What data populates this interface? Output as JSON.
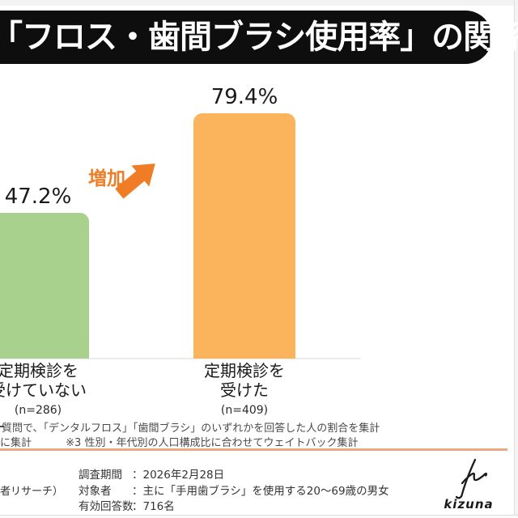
{
  "title": {
    "text": "「フロス・歯間ブラシ使用率」の関係"
  },
  "chart_data": {
    "type": "bar",
    "categories": [
      "定期検診を受けていない",
      "定期検診を受けた"
    ],
    "values": [
      47.2,
      79.4
    ],
    "value_labels": [
      "47.2%",
      "79.4%"
    ],
    "category_lines": [
      [
        "定期検診を",
        "受けていない"
      ],
      [
        "定期検診を",
        "受けた"
      ]
    ],
    "sample_sizes": [
      "(n=286)",
      "(n=409)"
    ],
    "bar_colors": [
      "#a9d18e",
      "#fbb45c"
    ],
    "annotation": "増加",
    "ylim": [
      0,
      100
    ],
    "grid": false,
    "legend": "none",
    "layout_note": "left bar partially cropped at left image edge"
  },
  "annotation": {
    "label": "増加",
    "color": "#f07d26"
  },
  "footnotes": {
    "line1": "質問で、「デンタルフロス」「歯間ブラシ」のいずれかを回答した人の割合を集計",
    "line2_left": "に集計",
    "line2_right": "※3 性別・年代別の人口構成比に合わせてウェイトバック集計"
  },
  "survey": {
    "cropped_left_text": "者リサーチ）",
    "rows": [
      {
        "label": "調査期間",
        "value": "：2026年2月28日"
      },
      {
        "label": "対象者",
        "value": "：主に「手用歯ブラシ」を使用する20～69歳の男女"
      },
      {
        "label": "有効回答数",
        "value": "：716名"
      }
    ]
  },
  "logo": {
    "text": "kizuna",
    "icon": "kizuna-k-mark"
  },
  "colors": {
    "bar_green": "#a9d18e",
    "bar_orange": "#fbb45c",
    "accent_orange": "#f07d26",
    "divider_orange": "#eba97f",
    "title_pill_bg": "#0e0e0e",
    "footnote_gray": "#4a4a4a"
  }
}
